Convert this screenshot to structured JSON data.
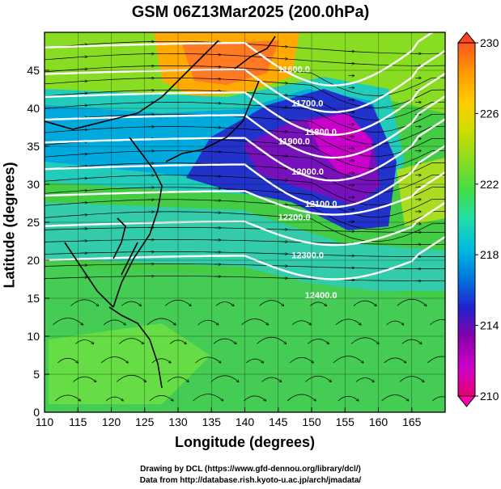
{
  "title": "GSM 06Z13Mar2025 (200.0hPa)",
  "x_axis": {
    "label": "Longitude (degrees)",
    "range": [
      110,
      170
    ],
    "ticks": [
      "110",
      "115",
      "120",
      "125",
      "130",
      "135",
      "140",
      "145",
      "150",
      "155",
      "160",
      "165"
    ]
  },
  "y_axis": {
    "label": "Latitude  (degrees)",
    "range": [
      0,
      50
    ],
    "ticks": [
      "0",
      "5",
      "10",
      "15",
      "20",
      "25",
      "30",
      "35",
      "40",
      "45"
    ]
  },
  "colorbar": {
    "range": [
      210,
      230
    ],
    "labels": [
      "230",
      "226",
      "222",
      "218",
      "214",
      "210"
    ],
    "stops": [
      "#e60073",
      "#cc00cc",
      "#8800aa",
      "#2222cc",
      "#0077dd",
      "#00bbdd",
      "#22ddaa",
      "#44dd44",
      "#88dd22",
      "#ccdd00",
      "#ffcc00",
      "#ff9900",
      "#ff5522"
    ]
  },
  "contours": [
    {
      "label": "11600.0"
    },
    {
      "label": "11700.0"
    },
    {
      "label": "11800.0"
    },
    {
      "label": "11900.0"
    },
    {
      "label": "12000.0"
    },
    {
      "label": "12100.0"
    },
    {
      "label": "12200.0"
    },
    {
      "label": "12300.0"
    },
    {
      "label": "12400.0"
    }
  ],
  "credits": {
    "line1": "Drawing by DCL (https://www.gfd-dennou.org/library/dcl/)",
    "line2": "Data from http://database.rish.kyoto-u.ac.jp/arch/jmadata/"
  }
}
